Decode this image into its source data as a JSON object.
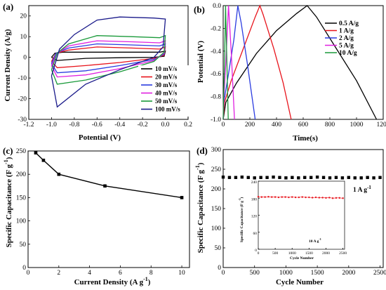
{
  "chart_data": [
    {
      "panel": "(a)",
      "type": "line",
      "xlabel": "Potential (V)",
      "ylabel": "Current Density (A/g)",
      "xlim": [
        -1.2,
        0.2
      ],
      "ylim": [
        -30,
        25
      ],
      "xticks": [
        "-1.2",
        "-1.0",
        "-0.8",
        "-0.6",
        "-0.4",
        "-0.2",
        "0.0",
        "0.2"
      ],
      "yticks": [
        "-30",
        "-20",
        "-10",
        "0",
        "10",
        "20"
      ],
      "legend_position": "bottom-right",
      "series": [
        {
          "name": "10  mV/s",
          "color": "#000000",
          "upper": [
            [
              -1.0,
              0.0
            ],
            [
              -0.97,
              2.0
            ],
            [
              -0.9,
              2.5
            ],
            [
              -0.6,
              2.5
            ],
            [
              -0.3,
              2.5
            ],
            [
              -0.05,
              2.5
            ],
            [
              0.0,
              3.0
            ]
          ],
          "lower": [
            [
              0.0,
              3.0
            ],
            [
              -0.01,
              0.5
            ],
            [
              -0.1,
              0.0
            ],
            [
              -0.4,
              -0.2
            ],
            [
              -0.7,
              -0.5
            ],
            [
              -0.95,
              -1.5
            ],
            [
              -1.0,
              0.0
            ]
          ]
        },
        {
          "name": "20  mV/s",
          "color": "#e8141c",
          "upper": [
            [
              -1.0,
              -2.0
            ],
            [
              -0.96,
              2.0
            ],
            [
              -0.85,
              3.5
            ],
            [
              -0.6,
              5.0
            ],
            [
              -0.3,
              4.5
            ],
            [
              -0.05,
              4.0
            ],
            [
              0.0,
              5.0
            ]
          ],
          "lower": [
            [
              0.0,
              5.0
            ],
            [
              -0.01,
              1.0
            ],
            [
              -0.1,
              -0.5
            ],
            [
              -0.4,
              -2.5
            ],
            [
              -0.7,
              -4.0
            ],
            [
              -0.95,
              -5.0
            ],
            [
              -1.0,
              -2.0
            ]
          ]
        },
        {
          "name": "30  mV/s",
          "color": "#2b3ce0",
          "upper": [
            [
              -1.0,
              -3.0
            ],
            [
              -0.96,
              2.0
            ],
            [
              -0.85,
              4.5
            ],
            [
              -0.6,
              6.5
            ],
            [
              -0.3,
              6.0
            ],
            [
              -0.05,
              5.5
            ],
            [
              0.0,
              6.5
            ]
          ],
          "lower": [
            [
              0.0,
              6.5
            ],
            [
              -0.01,
              1.5
            ],
            [
              -0.1,
              -1.0
            ],
            [
              -0.4,
              -4.0
            ],
            [
              -0.7,
              -6.5
            ],
            [
              -0.95,
              -7.5
            ],
            [
              -1.0,
              -3.0
            ]
          ]
        },
        {
          "name": "40  mV/s",
          "color": "#e020e0",
          "upper": [
            [
              -1.0,
              -4.0
            ],
            [
              -0.95,
              2.0
            ],
            [
              -0.85,
              5.5
            ],
            [
              -0.6,
              8.0
            ],
            [
              -0.3,
              7.5
            ],
            [
              -0.05,
              7.0
            ],
            [
              0.0,
              8.0
            ]
          ],
          "lower": [
            [
              0.0,
              8.0
            ],
            [
              -0.01,
              2.0
            ],
            [
              -0.1,
              -1.5
            ],
            [
              -0.4,
              -5.5
            ],
            [
              -0.7,
              -8.5
            ],
            [
              -0.95,
              -9.5
            ],
            [
              -1.0,
              -4.0
            ]
          ]
        },
        {
          "name": "50  mV/s",
          "color": "#1a9a3a",
          "upper": [
            [
              -1.0,
              -6.0
            ],
            [
              -0.95,
              2.0
            ],
            [
              -0.85,
              6.5
            ],
            [
              -0.6,
              10.5
            ],
            [
              -0.3,
              10.0
            ],
            [
              -0.05,
              9.5
            ],
            [
              0.0,
              10.5
            ]
          ],
          "lower": [
            [
              0.0,
              10.5
            ],
            [
              -0.01,
              2.5
            ],
            [
              -0.1,
              -2.0
            ],
            [
              -0.4,
              -7.0
            ],
            [
              -0.7,
              -11.0
            ],
            [
              -0.95,
              -13.0
            ],
            [
              -1.0,
              -6.0
            ]
          ]
        },
        {
          "name": "100 mV/s",
          "color": "#1a1a8a",
          "upper": [
            [
              -1.0,
              -9.0
            ],
            [
              -0.93,
              4.0
            ],
            [
              -0.8,
              11.0
            ],
            [
              -0.6,
              18.0
            ],
            [
              -0.4,
              19.5
            ],
            [
              -0.1,
              19.0
            ],
            [
              0.0,
              18.5
            ]
          ],
          "lower": [
            [
              0.0,
              18.5
            ],
            [
              -0.02,
              5.0
            ],
            [
              -0.1,
              0.0
            ],
            [
              -0.4,
              -6.0
            ],
            [
              -0.7,
              -13.0
            ],
            [
              -0.95,
              -24.0
            ],
            [
              -1.0,
              -9.0
            ]
          ]
        }
      ]
    },
    {
      "panel": "(b)",
      "type": "line",
      "xlabel": "Time(s)",
      "ylabel": "Potential (V)",
      "xlim": [
        0,
        1200
      ],
      "ylim": [
        -1.0,
        0.0
      ],
      "xticks": [
        "0",
        "200",
        "400",
        "600",
        "800",
        "1000",
        "1200"
      ],
      "yticks": [
        "-1.0",
        "-0.8",
        "-0.6",
        "-0.4",
        "-0.2",
        "0.0"
      ],
      "legend_position": "top-right",
      "series": [
        {
          "name": "0.5 A/g",
          "color": "#000000",
          "points": [
            [
              0,
              -1.0
            ],
            [
              20,
              -0.85
            ],
            [
              100,
              -0.68
            ],
            [
              250,
              -0.42
            ],
            [
              400,
              -0.22
            ],
            [
              550,
              -0.07
            ],
            [
              630,
              0.0
            ],
            [
              700,
              -0.1
            ],
            [
              850,
              -0.38
            ],
            [
              1000,
              -0.66
            ],
            [
              1150,
              -1.0
            ]
          ]
        },
        {
          "name": "1  A/g",
          "color": "#e8141c",
          "points": [
            [
              0,
              -1.0
            ],
            [
              10,
              -0.85
            ],
            [
              60,
              -0.66
            ],
            [
              150,
              -0.38
            ],
            [
              240,
              -0.1
            ],
            [
              275,
              0.0
            ],
            [
              300,
              -0.08
            ],
            [
              380,
              -0.38
            ],
            [
              450,
              -0.68
            ],
            [
              510,
              -1.0
            ]
          ]
        },
        {
          "name": "2  A/g",
          "color": "#2b3ce0",
          "points": [
            [
              0,
              -1.0
            ],
            [
              5,
              -0.85
            ],
            [
              40,
              -0.6
            ],
            [
              80,
              -0.3
            ],
            [
              110,
              0.0
            ],
            [
              135,
              -0.15
            ],
            [
              180,
              -0.5
            ],
            [
              240,
              -1.0
            ]
          ]
        },
        {
          "name": "5  A/g",
          "color": "#e020e0",
          "points": [
            [
              0,
              -1.0
            ],
            [
              3,
              -0.85
            ],
            [
              20,
              -0.5
            ],
            [
              40,
              0.0
            ],
            [
              60,
              -0.4
            ],
            [
              85,
              -1.0
            ]
          ]
        },
        {
          "name": "10 A/g",
          "color": "#1a9a3a",
          "points": [
            [
              0,
              -1.0
            ],
            [
              2,
              -0.85
            ],
            [
              10,
              -0.5
            ],
            [
              18,
              0.0
            ],
            [
              28,
              -0.5
            ],
            [
              38,
              -1.0
            ]
          ]
        }
      ]
    },
    {
      "panel": "(c)",
      "type": "line",
      "xlabel": "Current Density (A g⁻¹)",
      "ylabel": "Specific Capacitance (F g⁻¹)",
      "xlim": [
        0,
        10.5
      ],
      "ylim": [
        0,
        250
      ],
      "xticks": [
        "0",
        "2",
        "4",
        "6",
        "8",
        "10"
      ],
      "yticks": [
        "0",
        "50",
        "100",
        "150",
        "200",
        "250"
      ],
      "x": [
        0.5,
        1,
        2,
        5,
        10
      ],
      "values": [
        246,
        230,
        200,
        175,
        150
      ],
      "color": "#000000"
    },
    {
      "panel": "(d)",
      "type": "scatter",
      "xlabel": "Cycle Number",
      "ylabel": "Specific Capacitance (F g⁻¹)",
      "xlim": [
        0,
        2550
      ],
      "ylim": [
        0,
        300
      ],
      "xticks": [
        "0",
        "500",
        "1000",
        "1500",
        "2000",
        "2500"
      ],
      "yticks": [
        "0",
        "50",
        "100",
        "150",
        "200",
        "250",
        "300"
      ],
      "annotation": "1 A g⁻¹",
      "x": [
        0,
        100,
        200,
        300,
        400,
        500,
        600,
        700,
        800,
        900,
        1000,
        1100,
        1200,
        1300,
        1400,
        1500,
        1600,
        1700,
        1800,
        1900,
        2000,
        2100,
        2200,
        2300,
        2400,
        2500
      ],
      "values": [
        230,
        229,
        229,
        230,
        229,
        228,
        229,
        229,
        230,
        229,
        228,
        229,
        228,
        229,
        229,
        230,
        229,
        228,
        229,
        228,
        229,
        228,
        228,
        229,
        228,
        229
      ],
      "color": "#000000",
      "inset": {
        "type": "scatter",
        "xlabel": "Cycle Number",
        "ylabel": "Specific Capacitance (F g⁻¹)",
        "xlim": [
          0,
          2550
        ],
        "ylim": [
          0,
          240
        ],
        "xticks": [
          "0",
          "500",
          "1000",
          "1500",
          "2000",
          "2500"
        ],
        "yticks": [
          "0",
          "60",
          "120",
          "180",
          "240"
        ],
        "annotation": "10 A g⁻¹",
        "x": [
          0,
          100,
          200,
          300,
          400,
          500,
          600,
          700,
          800,
          900,
          1000,
          1100,
          1200,
          1300,
          1400,
          1500,
          1600,
          1700,
          1800,
          1900,
          2000,
          2100,
          2200,
          2300,
          2400,
          2500
        ],
        "values": [
          185,
          184,
          184,
          185,
          184,
          184,
          183,
          184,
          184,
          183,
          184,
          183,
          183,
          184,
          183,
          183,
          182,
          183,
          182,
          182,
          181,
          182,
          180,
          181,
          181,
          180
        ],
        "color": "#e8141c"
      }
    }
  ]
}
